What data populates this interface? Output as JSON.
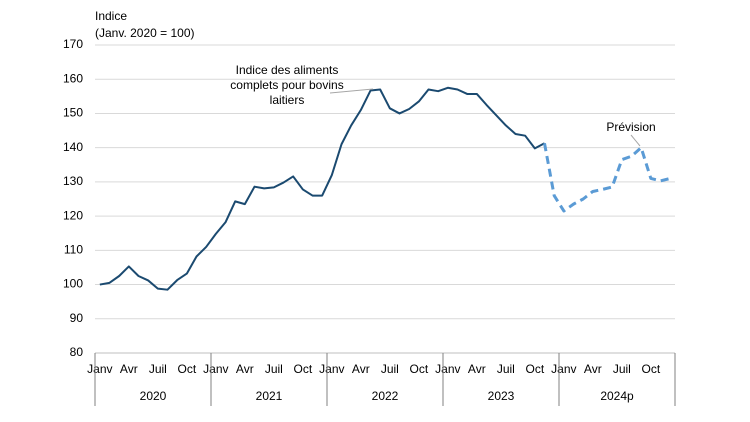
{
  "chart_data": {
    "type": "line",
    "y_label": [
      "Indice",
      "(Janv. 2020 = 100)"
    ],
    "categories": [
      "Janv",
      null,
      null,
      "Avr",
      null,
      null,
      "Juil",
      null,
      null,
      "Oct",
      null,
      null,
      "Janv",
      null,
      null,
      "Avr",
      null,
      null,
      "Juil",
      null,
      null,
      "Oct",
      null,
      null,
      "Janv",
      null,
      null,
      "Avr",
      null,
      null,
      "Juil",
      null,
      null,
      "Oct",
      null,
      null,
      "Janv",
      null,
      null,
      "Avr",
      null,
      null,
      "Juil",
      null,
      null,
      "Oct",
      null,
      null,
      "Janv",
      null,
      null,
      "Avr",
      null,
      null,
      "Juil",
      null,
      null,
      "Oct",
      null,
      null
    ],
    "group_labels": [
      "2020",
      "2021",
      "2022",
      "2023",
      "2024p"
    ],
    "series": [
      {
        "name": "Indice des aliments complets pour bovins laitiers",
        "color": "#1b4a70",
        "dashed": false,
        "values": [
          100,
          100.5,
          102.5,
          105.3,
          102.5,
          101.2,
          98.8,
          98.5,
          101.3,
          103.2,
          108.2,
          111,
          114.8,
          118.2,
          124.3,
          123.5,
          128.6,
          128.1,
          128.4,
          129.8,
          131.6,
          127.8,
          126,
          126,
          132,
          141,
          146.5,
          151,
          156.7,
          157,
          151.5,
          150,
          151.3,
          153.5,
          157,
          156.5,
          157.5,
          157,
          155.7,
          155.7,
          152.5,
          149.5,
          146.5,
          144,
          143.5,
          139.8,
          141.3,
          null,
          null,
          null,
          null,
          null,
          null,
          null,
          null,
          null,
          null,
          null,
          null,
          null
        ]
      },
      {
        "name": "Prévision",
        "color": "#5b9bd5",
        "dashed": true,
        "values": [
          null,
          null,
          null,
          null,
          null,
          null,
          null,
          null,
          null,
          null,
          null,
          null,
          null,
          null,
          null,
          null,
          null,
          null,
          null,
          null,
          null,
          null,
          null,
          null,
          null,
          null,
          null,
          null,
          null,
          null,
          null,
          null,
          null,
          null,
          null,
          null,
          null,
          null,
          null,
          null,
          null,
          null,
          null,
          null,
          null,
          null,
          141.3,
          126,
          121.5,
          123.5,
          125,
          127.2,
          127.8,
          128.5,
          136.5,
          137.5,
          140,
          131,
          130.3,
          131
        ]
      }
    ],
    "ylim": [
      80,
      170
    ],
    "yticks": [
      80,
      90,
      100,
      110,
      120,
      130,
      140,
      150,
      160,
      170
    ],
    "grid": true
  }
}
